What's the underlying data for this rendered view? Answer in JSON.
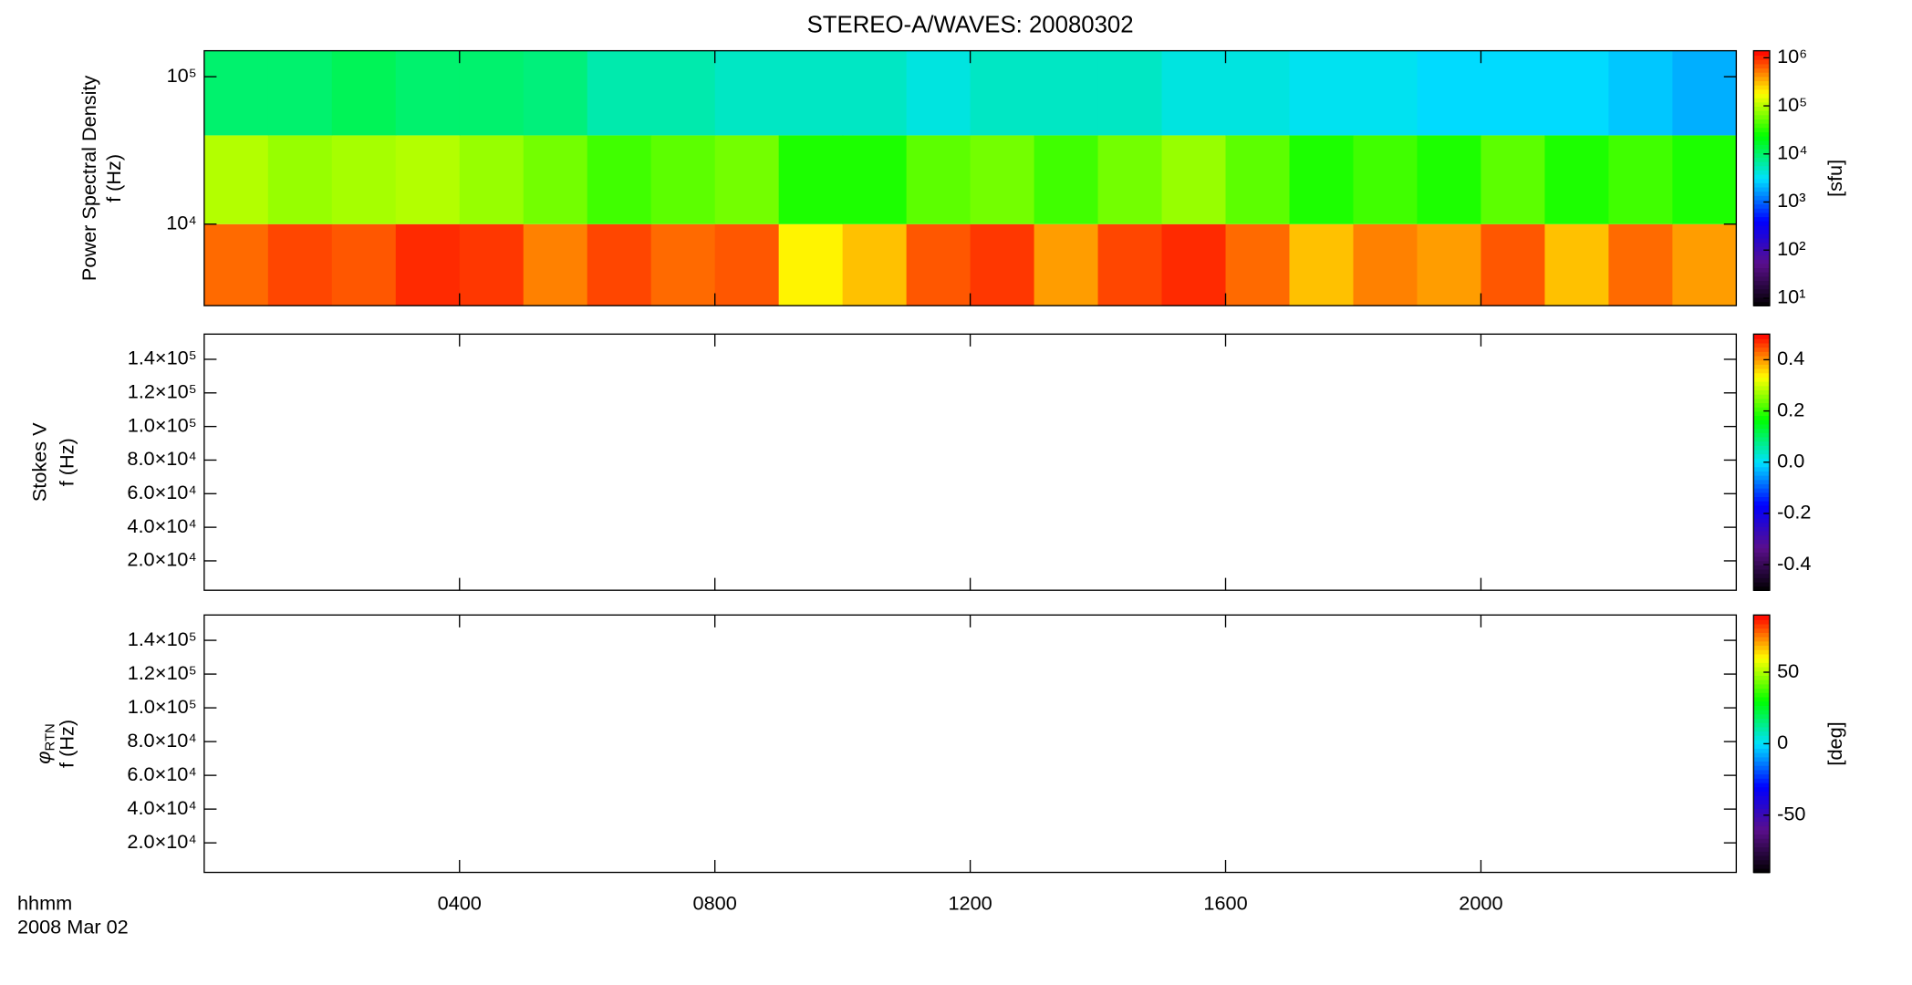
{
  "title": "STEREO-A/WAVES: 20080302",
  "time_label": "hhmm",
  "date_label": "2008 Mar 02",
  "chart_data": [
    {
      "type": "heatmap",
      "ylabel": "Power Spectral Density",
      "ylabel2": "f (Hz)",
      "ylog": true,
      "xlim": [
        0,
        24
      ],
      "xticks": [
        {
          "value": 4,
          "label": "0400"
        },
        {
          "value": 8,
          "label": "0800"
        },
        {
          "value": 12,
          "label": "1200"
        },
        {
          "value": 16,
          "label": "1600"
        },
        {
          "value": 20,
          "label": "2000"
        }
      ],
      "ylim": [
        2800,
        150000
      ],
      "yticks": [
        {
          "value": 10000,
          "label": "10⁴"
        },
        {
          "value": 100000,
          "label": "10⁵"
        }
      ],
      "zlog": true,
      "zlim": [
        7,
        1400000
      ],
      "zticks": [
        {
          "value": 10,
          "label": "10¹"
        },
        {
          "value": 100,
          "label": "10²"
        },
        {
          "value": 1000,
          "label": "10³"
        },
        {
          "value": 10000,
          "label": "10⁴"
        },
        {
          "value": 100000,
          "label": "10⁵"
        },
        {
          "value": 1000000,
          "label": "10⁶"
        }
      ],
      "zlabel": "[sfu]",
      "colormap": [
        "#000000",
        "#5a0f8c",
        "#0000ff",
        "#00e0ff",
        "#00ff00",
        "#ffff00",
        "#ff0000"
      ],
      "x": [
        0.5,
        1.5,
        2.5,
        3.5,
        4.5,
        5.5,
        6.5,
        7.5,
        8.5,
        9.5,
        10.5,
        11.5,
        12.5,
        13.5,
        14.5,
        15.5,
        16.5,
        17.5,
        18.5,
        19.5,
        20.5,
        21.5,
        22.5,
        23.5
      ],
      "ybands": [
        [
          2800,
          10000
        ],
        [
          10000,
          40000
        ],
        [
          40000,
          150000
        ]
      ],
      "z": [
        [
          600000,
          800000,
          700000,
          1000000,
          900000,
          500000,
          800000,
          600000,
          700000,
          200000,
          300000,
          700000,
          900000,
          400000,
          800000,
          1000000,
          600000,
          300000,
          500000,
          400000,
          700000,
          300000,
          600000,
          400000
        ],
        [
          100000,
          80000,
          90000,
          100000,
          80000,
          60000,
          40000,
          50000,
          60000,
          30000,
          30000,
          50000,
          60000,
          40000,
          60000,
          80000,
          50000,
          30000,
          40000,
          30000,
          50000,
          30000,
          40000,
          30000
        ],
        [
          10000,
          10000,
          12000,
          10000,
          10000,
          9000,
          6000,
          6000,
          5000,
          5000,
          5000,
          4000,
          5000,
          5000,
          5000,
          4000,
          4000,
          3500,
          3500,
          3000,
          3000,
          3000,
          2500,
          2000
        ]
      ]
    },
    {
      "type": "empty",
      "ylabel": "Stokes V",
      "ylabel2": "f (Hz)",
      "ylog": false,
      "xlim": [
        0,
        24
      ],
      "xticks": [
        {
          "value": 4,
          "label": "0400"
        },
        {
          "value": 8,
          "label": "0800"
        },
        {
          "value": 12,
          "label": "1200"
        },
        {
          "value": 16,
          "label": "1600"
        },
        {
          "value": 20,
          "label": "2000"
        }
      ],
      "ylim": [
        2500,
        155000
      ],
      "yticks": [
        {
          "value": 20000,
          "label": "2.0×10⁴"
        },
        {
          "value": 40000,
          "label": "4.0×10⁴"
        },
        {
          "value": 60000,
          "label": "6.0×10⁴"
        },
        {
          "value": 80000,
          "label": "8.0×10⁴"
        },
        {
          "value": 100000,
          "label": "1.0×10⁵"
        },
        {
          "value": 120000,
          "label": "1.2×10⁵"
        },
        {
          "value": 140000,
          "label": "1.4×10⁵"
        }
      ],
      "zlog": false,
      "zlim": [
        -0.5,
        0.5
      ],
      "zticks": [
        -0.4,
        -0.2,
        {
          "value": 0,
          "label": "0.0"
        },
        0.2,
        0.4
      ],
      "colormap": [
        "#000000",
        "#5a0f8c",
        "#0000ff",
        "#00e0ff",
        "#00ff00",
        "#ffff00",
        "#ff0000"
      ]
    },
    {
      "type": "empty",
      "ylabel_symbol": "φ",
      "ylabel_subscript": "RTN",
      "ylabel2": "f (Hz)",
      "ylog": false,
      "xlim": [
        0,
        24
      ],
      "xticks": [
        {
          "value": 4,
          "label": "0400"
        },
        {
          "value": 8,
          "label": "0800"
        },
        {
          "value": 12,
          "label": "1200"
        },
        {
          "value": 16,
          "label": "1600"
        },
        {
          "value": 20,
          "label": "2000"
        }
      ],
      "ylim": [
        2500,
        155000
      ],
      "yticks": [
        {
          "value": 20000,
          "label": "2.0×10⁴"
        },
        {
          "value": 40000,
          "label": "4.0×10⁴"
        },
        {
          "value": 60000,
          "label": "6.0×10⁴"
        },
        {
          "value": 80000,
          "label": "8.0×10⁴"
        },
        {
          "value": 100000,
          "label": "1.0×10⁵"
        },
        {
          "value": 120000,
          "label": "1.2×10⁵"
        },
        {
          "value": 140000,
          "label": "1.4×10⁵"
        }
      ],
      "zlog": false,
      "zlim": [
        -90,
        90
      ],
      "zticks": [
        -50,
        0,
        50
      ],
      "zlabel": "[deg]",
      "colormap": [
        "#000000",
        "#5a0f8c",
        "#0000ff",
        "#00e0ff",
        "#00ff00",
        "#ffff00",
        "#ff0000"
      ]
    }
  ]
}
